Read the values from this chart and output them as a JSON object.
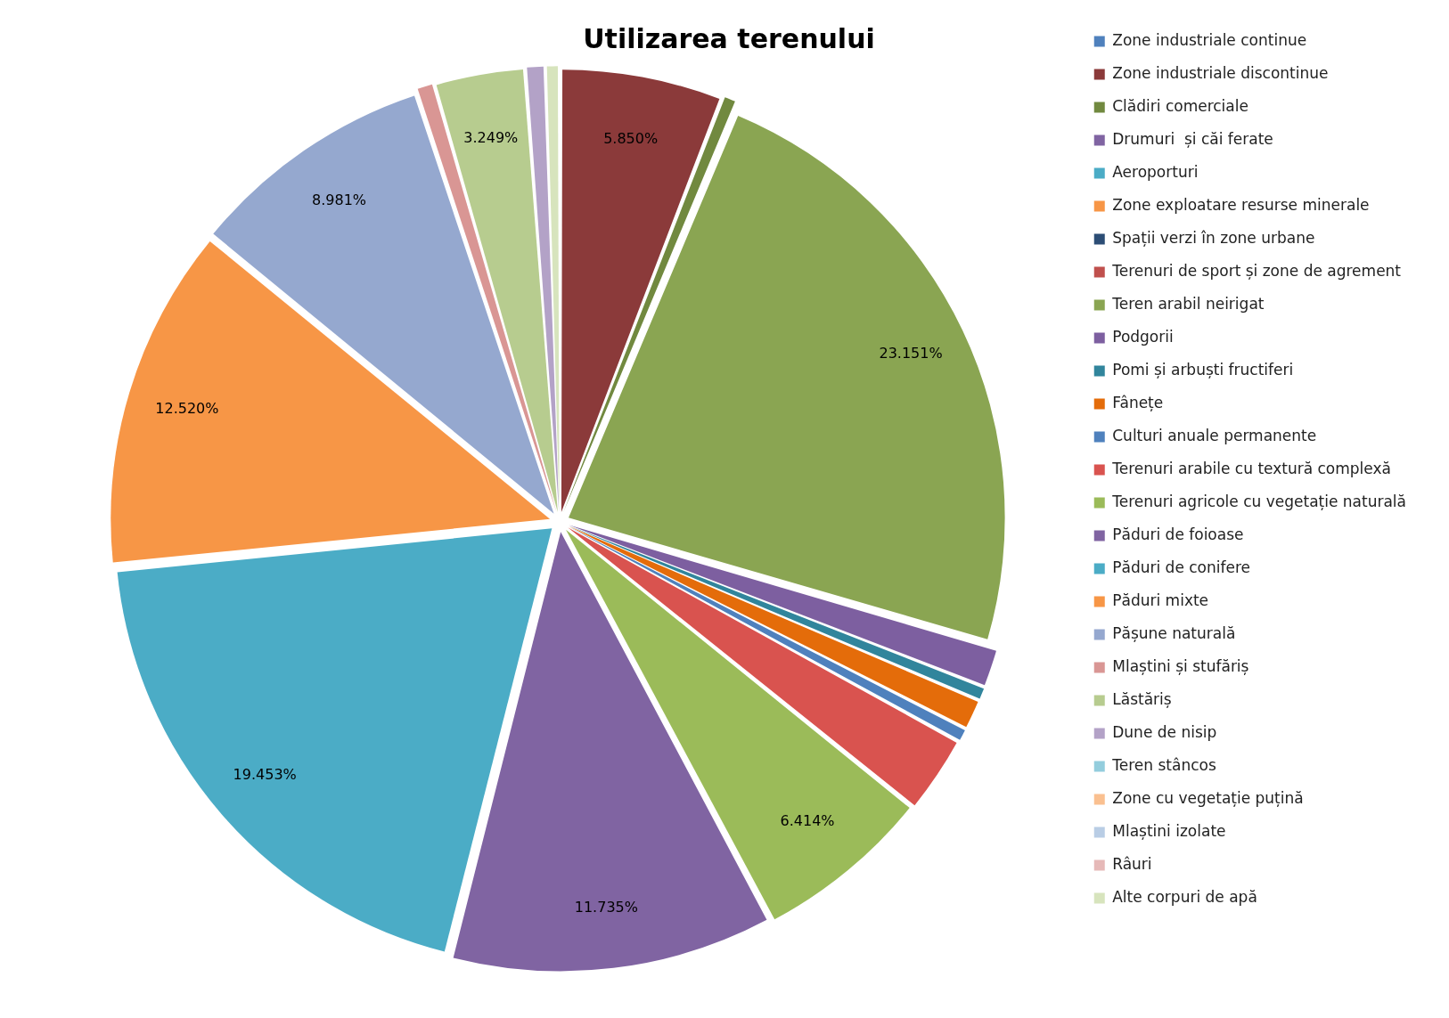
{
  "chart_data": {
    "type": "pie",
    "title": "Utilizarea terenului",
    "categories": [
      "Zone industriale continue",
      "Zone industriale discontinue",
      "Clădiri comerciale",
      "Drumuri  și căi ferate",
      "Aeroporturi",
      "Zone exploatare resurse minerale",
      "Spații verzi în zone urbane",
      "Terenuri de sport și zone de agrement",
      "Teren arabil neirigat",
      "Podgorii",
      "Pomi și arbuști fructiferi",
      "Fânețe",
      "Culturi anuale permanente",
      "Terenuri arabile cu textură complexă",
      "Terenuri agricole cu vegetație naturală",
      "Păduri de foioase",
      "Păduri de conifere",
      "Păduri mixte",
      "Pășune naturală",
      "Mlaștini și stufăriș",
      "Lăstăriș",
      "Dune de nisip",
      "Teren stâncos",
      "Zone cu vegetație puțină",
      "Mlaștini izolate",
      "Râuri",
      "Alte corpuri de apă"
    ],
    "values": [
      0,
      5.85,
      0.5,
      0,
      0,
      0,
      0,
      0,
      23.151,
      1.4,
      0.5,
      1.1,
      0.5,
      2.8,
      6.414,
      11.735,
      19.453,
      12.52,
      8.981,
      0.647,
      3.249,
      0.7,
      0,
      0,
      0,
      0,
      0.5
    ],
    "value_labels": [
      null,
      "5.850%",
      null,
      null,
      null,
      null,
      null,
      null,
      "23.151%",
      null,
      null,
      null,
      null,
      null,
      "6.414%",
      "11.735%",
      "19.453%",
      "12.520%",
      "8.981%",
      null,
      "3.249%",
      null,
      null,
      null,
      null,
      null,
      null
    ],
    "colors": [
      "#4f81bd",
      "#8b3a3a",
      "#71893f",
      "#8064a2",
      "#4bacc6",
      "#f79646",
      "#2c4d75",
      "#c0504d",
      "#8aa552",
      "#7d5fa0",
      "#31859c",
      "#e46c0a",
      "#4f81bd",
      "#d9534f",
      "#9bbb59",
      "#8064a2",
      "#4bacc6",
      "#f79646",
      "#95a8cf",
      "#d99694",
      "#b7cc8f",
      "#b3a2c7",
      "#93cddd",
      "#fac090",
      "#b9cde5",
      "#e6b9b8",
      "#d7e4bd"
    ],
    "legend": "right"
  }
}
